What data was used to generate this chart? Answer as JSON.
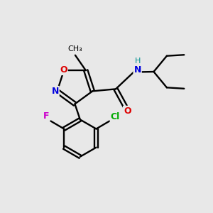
{
  "bg_color": "#e8e8e8",
  "atom_colors": {
    "C": "#000000",
    "N": "#0000dd",
    "O": "#dd0000",
    "F": "#cc00cc",
    "Cl": "#00aa00",
    "H": "#009090"
  }
}
